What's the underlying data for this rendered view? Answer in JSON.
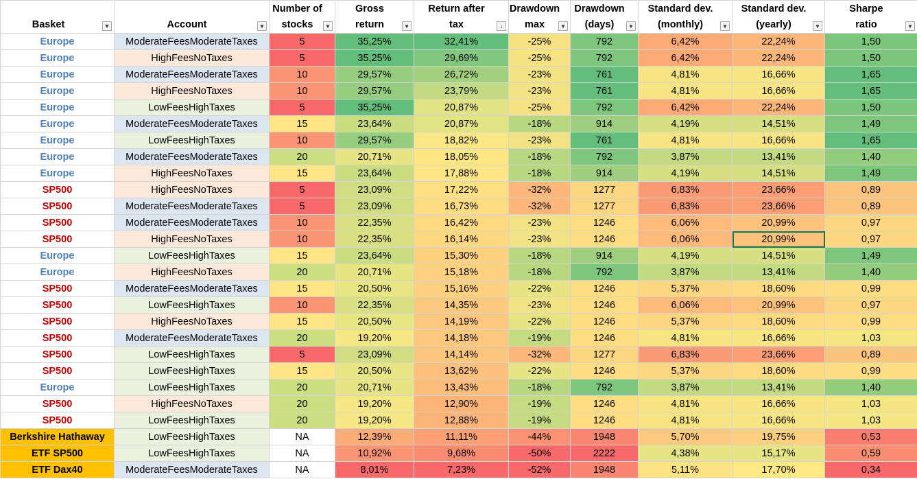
{
  "headers": [
    {
      "key": "basket",
      "lines": [
        "",
        "Basket"
      ],
      "filter": "funnel-icon"
    },
    {
      "key": "account",
      "lines": [
        "",
        "Account"
      ],
      "filter": "chevron-down-icon"
    },
    {
      "key": "stocks",
      "lines": [
        "Number of",
        "stocks"
      ],
      "filter": "chevron-down-icon"
    },
    {
      "key": "gross",
      "lines": [
        "Gross",
        "return"
      ],
      "filter": "chevron-down-icon"
    },
    {
      "key": "ret_after",
      "lines": [
        "Return after",
        "tax"
      ],
      "filter": "sort-desc-icon"
    },
    {
      "key": "dd_max",
      "lines": [
        "Drawdown",
        "max"
      ],
      "filter": "chevron-down-icon"
    },
    {
      "key": "dd_days",
      "lines": [
        "Drawdown",
        "(days)"
      ],
      "filter": "chevron-down-icon"
    },
    {
      "key": "sd_month",
      "lines": [
        "Standard dev.",
        "(monthly)"
      ],
      "filter": "chevron-down-icon"
    },
    {
      "key": "sd_year",
      "lines": [
        "Standard dev.",
        "(yearly)"
      ],
      "filter": "chevron-down-icon"
    },
    {
      "key": "sharpe",
      "lines": [
        "Sharpe",
        "ratio"
      ],
      "filter": "chevron-down-icon"
    }
  ],
  "basket_colors": {
    "Europe": {
      "text": "#4f81bd",
      "bg": "#ffffff"
    },
    "SP500": {
      "text": "#c00000",
      "bg": "#ffffff"
    },
    "Berkshire Hathaway": {
      "text": "#000000",
      "bg": "#ffc000"
    },
    "ETF SP500": {
      "text": "#000000",
      "bg": "#ffc000"
    },
    "ETF Dax40": {
      "text": "#000000",
      "bg": "#ffc000"
    }
  },
  "account_colors": {
    "ModerateFeesModerateTaxes": "#dce6f1",
    "HighFeesNoTaxes": "#fde9d9",
    "LowFeesHighTaxes": "#ebf1de"
  },
  "rows": [
    {
      "basket": "Europe",
      "account": "ModerateFeesModerateTaxes",
      "stocks": "5",
      "gross": "35,25%",
      "ret_after": "32,41%",
      "dd_max": "-25%",
      "dd_days": "792",
      "sd_month": "6,42%",
      "sd_year": "22,24%",
      "sharpe": "1,50",
      "colors": {
        "stocks": "#f8696b",
        "gross": "#63be7b",
        "ret_after": "#63be7b",
        "dd_max": "#f7e283",
        "dd_days": "#7fc67d",
        "sd_month": "#fcab76",
        "sd_year": "#fcb679",
        "sharpe": "#7cc57d"
      }
    },
    {
      "basket": "Europe",
      "account": "HighFeesNoTaxes",
      "stocks": "5",
      "gross": "35,25%",
      "ret_after": "29,69%",
      "dd_max": "-25%",
      "dd_days": "792",
      "sd_month": "6,42%",
      "sd_year": "22,24%",
      "sharpe": "1,50",
      "colors": {
        "stocks": "#f8696b",
        "gross": "#63be7b",
        "ret_after": "#81c77d",
        "dd_max": "#f7e283",
        "dd_days": "#7fc67d",
        "sd_month": "#fcab76",
        "sd_year": "#fcb679",
        "sharpe": "#7cc57d"
      }
    },
    {
      "basket": "Europe",
      "account": "ModerateFeesModerateTaxes",
      "stocks": "10",
      "gross": "29,57%",
      "ret_after": "26,72%",
      "dd_max": "-23%",
      "dd_days": "761",
      "sd_month": "4,81%",
      "sd_year": "16,66%",
      "sharpe": "1,65",
      "colors": {
        "stocks": "#fa9473",
        "gross": "#97cd7e",
        "ret_after": "#a2d07f",
        "dd_max": "#f1e383",
        "dd_days": "#63be7b",
        "sd_month": "#f7e583",
        "sd_year": "#f7e583",
        "sharpe": "#63be7b"
      }
    },
    {
      "basket": "Europe",
      "account": "HighFeesNoTaxes",
      "stocks": "10",
      "gross": "29,57%",
      "ret_after": "23,79%",
      "dd_max": "-23%",
      "dd_days": "761",
      "sd_month": "4,81%",
      "sd_year": "16,66%",
      "sharpe": "1,65",
      "colors": {
        "stocks": "#fa9473",
        "gross": "#97cd7e",
        "ret_after": "#c2da81",
        "dd_max": "#f1e383",
        "dd_days": "#63be7b",
        "sd_month": "#f7e583",
        "sd_year": "#f7e583",
        "sharpe": "#63be7b"
      }
    },
    {
      "basket": "Europe",
      "account": "LowFeesHighTaxes",
      "stocks": "5",
      "gross": "35,25%",
      "ret_after": "20,87%",
      "dd_max": "-25%",
      "dd_days": "792",
      "sd_month": "6,42%",
      "sd_year": "22,24%",
      "sharpe": "1,50",
      "colors": {
        "stocks": "#f8696b",
        "gross": "#63be7b",
        "ret_after": "#e2e383",
        "dd_max": "#f7e283",
        "dd_days": "#7fc67d",
        "sd_month": "#fcab76",
        "sd_year": "#fcb679",
        "sharpe": "#7cc57d"
      }
    },
    {
      "basket": "Europe",
      "account": "ModerateFeesModerateTaxes",
      "stocks": "15",
      "gross": "23,64%",
      "ret_after": "20,87%",
      "dd_max": "-18%",
      "dd_days": "914",
      "sd_month": "4,19%",
      "sd_year": "14,51%",
      "sharpe": "1,49",
      "colors": {
        "stocks": "#ffe584",
        "gross": "#cbdc81",
        "ret_after": "#e2e383",
        "dd_max": "#b8d780",
        "dd_days": "#9fcf7e",
        "sd_month": "#d6df82",
        "sd_year": "#d6df82",
        "sharpe": "#7fc67d"
      }
    },
    {
      "basket": "Europe",
      "account": "LowFeesHighTaxes",
      "stocks": "10",
      "gross": "29,57%",
      "ret_after": "18,82%",
      "dd_max": "-23%",
      "dd_days": "761",
      "sd_month": "4,81%",
      "sd_year": "16,66%",
      "sharpe": "1,65",
      "colors": {
        "stocks": "#fa9473",
        "gross": "#97cd7e",
        "ret_after": "#f9e884",
        "dd_max": "#f1e383",
        "dd_days": "#63be7b",
        "sd_month": "#f7e583",
        "sd_year": "#f7e583",
        "sharpe": "#63be7b"
      }
    },
    {
      "basket": "Europe",
      "account": "ModerateFeesModerateTaxes",
      "stocks": "20",
      "gross": "20,71%",
      "ret_after": "18,05%",
      "dd_max": "-18%",
      "dd_days": "792",
      "sd_month": "3,87%",
      "sd_year": "13,41%",
      "sharpe": "1,40",
      "colors": {
        "stocks": "#cddd82",
        "gross": "#e6e483",
        "ret_after": "#fee783",
        "dd_max": "#b8d780",
        "dd_days": "#7fc67d",
        "sd_month": "#c2da81",
        "sd_year": "#c2da81",
        "sharpe": "#94cc7e"
      }
    },
    {
      "basket": "Europe",
      "account": "HighFeesNoTaxes",
      "stocks": "15",
      "gross": "23,64%",
      "ret_after": "17,88%",
      "dd_max": "-18%",
      "dd_days": "914",
      "sd_month": "4,19%",
      "sd_year": "14,51%",
      "sharpe": "1,49",
      "colors": {
        "stocks": "#ffe584",
        "gross": "#cbdc81",
        "ret_after": "#ffe583",
        "dd_max": "#b8d780",
        "dd_days": "#9fcf7e",
        "sd_month": "#d6df82",
        "sd_year": "#d6df82",
        "sharpe": "#7fc67d"
      }
    },
    {
      "basket": "SP500",
      "account": "HighFeesNoTaxes",
      "stocks": "5",
      "gross": "23,09%",
      "ret_after": "17,22%",
      "dd_max": "-32%",
      "dd_days": "1277",
      "sd_month": "6,83%",
      "sd_year": "23,66%",
      "sharpe": "0,89",
      "colors": {
        "stocks": "#f8696b",
        "gross": "#d0dd82",
        "ret_after": "#ffe082",
        "dd_max": "#fdb77a",
        "dd_days": "#fed580",
        "sd_month": "#f99b74",
        "sd_year": "#fa9e75",
        "sharpe": "#fdc47d"
      }
    },
    {
      "basket": "SP500",
      "account": "ModerateFeesModerateTaxes",
      "stocks": "5",
      "gross": "23,09%",
      "ret_after": "16,73%",
      "dd_max": "-32%",
      "dd_days": "1277",
      "sd_month": "6,83%",
      "sd_year": "23,66%",
      "sharpe": "0,89",
      "colors": {
        "stocks": "#f8696b",
        "gross": "#d0dd82",
        "ret_after": "#ffdc81",
        "dd_max": "#fdb77a",
        "dd_days": "#fed580",
        "sd_month": "#f99b74",
        "sd_year": "#fa9e75",
        "sharpe": "#fdc47d"
      }
    },
    {
      "basket": "SP500",
      "account": "ModerateFeesModerateTaxes",
      "stocks": "10",
      "gross": "22,35%",
      "ret_after": "16,42%",
      "dd_max": "-23%",
      "dd_days": "1246",
      "sd_month": "6,06%",
      "sd_year": "20,99%",
      "sharpe": "0,97",
      "colors": {
        "stocks": "#fa9473",
        "gross": "#d8e082",
        "ret_after": "#ffda81",
        "dd_max": "#f1e383",
        "dd_days": "#fedd82",
        "sd_month": "#fdba7b",
        "sd_year": "#fdc27c",
        "sharpe": "#fed680"
      }
    },
    {
      "basket": "SP500",
      "account": "HighFeesNoTaxes",
      "stocks": "10",
      "gross": "22,35%",
      "ret_after": "16,14%",
      "dd_max": "-23%",
      "dd_days": "1246",
      "sd_month": "6,06%",
      "sd_year": "20,99%",
      "sharpe": "0,97",
      "colors": {
        "stocks": "#fa9473",
        "gross": "#d8e082",
        "ret_after": "#ffd880",
        "dd_max": "#f1e383",
        "dd_days": "#fedd82",
        "sd_month": "#fdba7b",
        "sd_year": "#fdc27c",
        "sharpe": "#fed680"
      }
    },
    {
      "basket": "Europe",
      "account": "LowFeesHighTaxes",
      "stocks": "15",
      "gross": "23,64%",
      "ret_after": "15,30%",
      "dd_max": "-18%",
      "dd_days": "914",
      "sd_month": "4,19%",
      "sd_year": "14,51%",
      "sharpe": "1,49",
      "colors": {
        "stocks": "#ffe584",
        "gross": "#cbdc81",
        "ret_after": "#fed17f",
        "dd_max": "#b8d780",
        "dd_days": "#9fcf7e",
        "sd_month": "#d6df82",
        "sd_year": "#d6df82",
        "sharpe": "#7fc67d"
      }
    },
    {
      "basket": "Europe",
      "account": "HighFeesNoTaxes",
      "stocks": "20",
      "gross": "20,71%",
      "ret_after": "15,18%",
      "dd_max": "-18%",
      "dd_days": "792",
      "sd_month": "3,87%",
      "sd_year": "13,41%",
      "sharpe": "1,40",
      "colors": {
        "stocks": "#cddd82",
        "gross": "#e6e483",
        "ret_after": "#fed07f",
        "dd_max": "#b8d780",
        "dd_days": "#7fc67d",
        "sd_month": "#c2da81",
        "sd_year": "#c2da81",
        "sharpe": "#94cc7e"
      }
    },
    {
      "basket": "SP500",
      "account": "ModerateFeesModerateTaxes",
      "stocks": "15",
      "gross": "20,50%",
      "ret_after": "15,16%",
      "dd_max": "-22%",
      "dd_days": "1246",
      "sd_month": "5,37%",
      "sd_year": "18,60%",
      "sharpe": "0,99",
      "colors": {
        "stocks": "#ffe584",
        "gross": "#e8e583",
        "ret_after": "#fed07f",
        "dd_max": "#e6e483",
        "dd_days": "#fedd82",
        "sd_month": "#fed680",
        "sd_year": "#fedb81",
        "sharpe": "#fedd82"
      }
    },
    {
      "basket": "SP500",
      "account": "LowFeesHighTaxes",
      "stocks": "10",
      "gross": "22,35%",
      "ret_after": "14,35%",
      "dd_max": "-23%",
      "dd_days": "1246",
      "sd_month": "6,06%",
      "sd_year": "20,99%",
      "sharpe": "0,97",
      "colors": {
        "stocks": "#fa9473",
        "gross": "#d8e082",
        "ret_after": "#fdc97e",
        "dd_max": "#f1e383",
        "dd_days": "#fedd82",
        "sd_month": "#fdba7b",
        "sd_year": "#fdc27c",
        "sharpe": "#fed680"
      }
    },
    {
      "basket": "SP500",
      "account": "HighFeesNoTaxes",
      "stocks": "15",
      "gross": "20,50%",
      "ret_after": "14,19%",
      "dd_max": "-22%",
      "dd_days": "1246",
      "sd_month": "5,37%",
      "sd_year": "18,60%",
      "sharpe": "0,99",
      "colors": {
        "stocks": "#ffe584",
        "gross": "#e8e583",
        "ret_after": "#fdc77d",
        "dd_max": "#e6e483",
        "dd_days": "#fedd82",
        "sd_month": "#fed680",
        "sd_year": "#fedb81",
        "sharpe": "#fedd82"
      }
    },
    {
      "basket": "SP500",
      "account": "ModerateFeesModerateTaxes",
      "stocks": "20",
      "gross": "19,20%",
      "ret_after": "14,18%",
      "dd_max": "-19%",
      "dd_days": "1246",
      "sd_month": "4,81%",
      "sd_year": "16,66%",
      "sharpe": "1,03",
      "colors": {
        "stocks": "#cddd82",
        "gross": "#f5e884",
        "ret_after": "#fdc77d",
        "dd_max": "#c5db81",
        "dd_days": "#fedd82",
        "sd_month": "#f7e583",
        "sd_year": "#f7e583",
        "sharpe": "#f4e783"
      }
    },
    {
      "basket": "SP500",
      "account": "LowFeesHighTaxes",
      "stocks": "5",
      "gross": "23,09%",
      "ret_after": "14,14%",
      "dd_max": "-32%",
      "dd_days": "1277",
      "sd_month": "6,83%",
      "sd_year": "23,66%",
      "sharpe": "0,89",
      "colors": {
        "stocks": "#f8696b",
        "gross": "#d0dd82",
        "ret_after": "#fdc67d",
        "dd_max": "#fdb77a",
        "dd_days": "#fed580",
        "sd_month": "#f99b74",
        "sd_year": "#fa9e75",
        "sharpe": "#fdc47d"
      }
    },
    {
      "basket": "SP500",
      "account": "LowFeesHighTaxes",
      "stocks": "15",
      "gross": "20,50%",
      "ret_after": "13,62%",
      "dd_max": "-22%",
      "dd_days": "1246",
      "sd_month": "5,37%",
      "sd_year": "18,60%",
      "sharpe": "0,99",
      "colors": {
        "stocks": "#ffe584",
        "gross": "#e8e583",
        "ret_after": "#fdbf7c",
        "dd_max": "#e6e483",
        "dd_days": "#fedd82",
        "sd_month": "#fed680",
        "sd_year": "#fedb81",
        "sharpe": "#fedd82"
      }
    },
    {
      "basket": "Europe",
      "account": "LowFeesHighTaxes",
      "stocks": "20",
      "gross": "20,71%",
      "ret_after": "13,43%",
      "dd_max": "-18%",
      "dd_days": "792",
      "sd_month": "3,87%",
      "sd_year": "13,41%",
      "sharpe": "1,40",
      "colors": {
        "stocks": "#cddd82",
        "gross": "#e6e483",
        "ret_after": "#fdbd7b",
        "dd_max": "#b8d780",
        "dd_days": "#7fc67d",
        "sd_month": "#c2da81",
        "sd_year": "#c2da81",
        "sharpe": "#94cc7e"
      }
    },
    {
      "basket": "SP500",
      "account": "HighFeesNoTaxes",
      "stocks": "20",
      "gross": "19,20%",
      "ret_after": "12,90%",
      "dd_max": "-19%",
      "dd_days": "1246",
      "sd_month": "4,81%",
      "sd_year": "16,66%",
      "sharpe": "1,03",
      "colors": {
        "stocks": "#cddd82",
        "gross": "#f5e884",
        "ret_after": "#fcb479",
        "dd_max": "#c5db81",
        "dd_days": "#fedd82",
        "sd_month": "#f7e583",
        "sd_year": "#f7e583",
        "sharpe": "#f4e783"
      }
    },
    {
      "basket": "SP500",
      "account": "LowFeesHighTaxes",
      "stocks": "20",
      "gross": "19,20%",
      "ret_after": "12,88%",
      "dd_max": "-19%",
      "dd_days": "1246",
      "sd_month": "4,81%",
      "sd_year": "16,66%",
      "sharpe": "1,03",
      "colors": {
        "stocks": "#cddd82",
        "gross": "#f5e884",
        "ret_after": "#fcb479",
        "dd_max": "#c5db81",
        "dd_days": "#fedd82",
        "sd_month": "#f7e583",
        "sd_year": "#f7e583",
        "sharpe": "#f4e783"
      }
    },
    {
      "basket": "Berkshire Hathaway",
      "account": "LowFeesHighTaxes",
      "stocks": "NA",
      "gross": "12,39%",
      "ret_after": "11,11%",
      "dd_max": "-44%",
      "dd_days": "1948",
      "sd_month": "5,70%",
      "sd_year": "19,75%",
      "sharpe": "0,53",
      "colors": {
        "stocks": "#ffffff",
        "gross": "#fcac77",
        "ret_after": "#fba075",
        "dd_max": "#fa9173",
        "dd_days": "#f98671",
        "sd_month": "#fdc97e",
        "sd_year": "#fdcf7f",
        "sharpe": "#f97e6f"
      }
    },
    {
      "basket": "ETF SP500",
      "account": "LowFeesHighTaxes",
      "stocks": "NA",
      "gross": "10,92%",
      "ret_after": "9,68%",
      "dd_max": "-50%",
      "dd_days": "2222",
      "sd_month": "4,38%",
      "sd_year": "15,17%",
      "sharpe": "0,59",
      "colors": {
        "stocks": "#ffffff",
        "gross": "#fb9474",
        "ret_after": "#f98b72",
        "dd_max": "#f8696b",
        "dd_days": "#f8696b",
        "sd_month": "#e6e483",
        "sd_year": "#e6e483",
        "sharpe": "#fa8d72"
      }
    },
    {
      "basket": "ETF Dax40",
      "account": "ModerateFeesModerateTaxes",
      "stocks": "NA",
      "gross": "8,01%",
      "ret_after": "7,23%",
      "dd_max": "-52%",
      "dd_days": "1948",
      "sd_month": "5,11%",
      "sd_year": "17,70%",
      "sharpe": "0,34",
      "colors": {
        "stocks": "#ffffff",
        "gross": "#f8696b",
        "ret_after": "#f8696b",
        "dd_max": "#f8696b",
        "dd_days": "#f98671",
        "sd_month": "#fee383",
        "sd_year": "#fee984",
        "sharpe": "#f8696b"
      }
    }
  ],
  "selected_cell": {
    "row": 12,
    "col": "sd_year"
  }
}
